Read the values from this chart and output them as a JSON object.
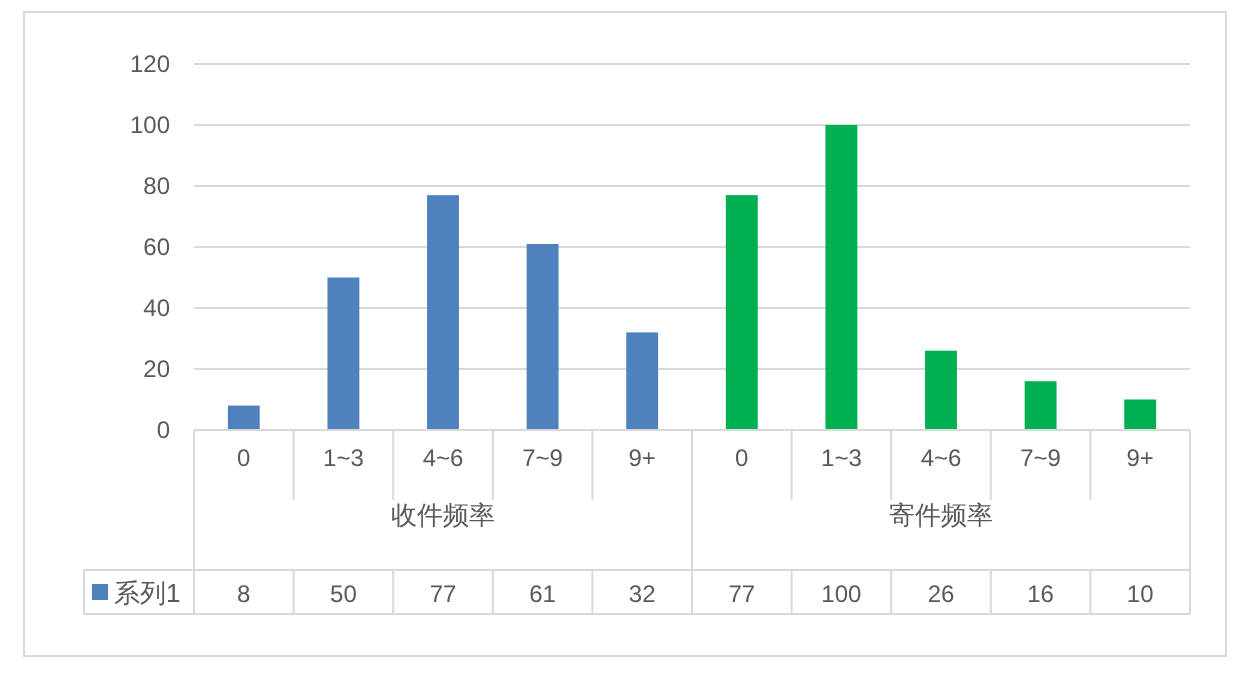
{
  "chart_data": {
    "type": "bar",
    "categories": [
      "0",
      "1~3",
      "4~6",
      "7~9",
      "9+",
      "0",
      "1~3",
      "4~6",
      "7~9",
      "9+"
    ],
    "annotations": [
      "收件频率",
      "寄件频率"
    ],
    "series": [
      {
        "name": "系列1",
        "color": "#4f81bd",
        "colors": [
          "#4f81bd",
          "#4f81bd",
          "#4f81bd",
          "#4f81bd",
          "#4f81bd",
          "#00b050",
          "#00b050",
          "#00b050",
          "#00b050",
          "#00b050"
        ],
        "values": [
          8,
          50,
          77,
          61,
          32,
          77,
          100,
          26,
          16,
          10
        ]
      }
    ],
    "ylim": [
      0,
      120
    ],
    "yticks": [
      0,
      20,
      40,
      60,
      80,
      100,
      120
    ],
    "grid": "y",
    "data_labels": true,
    "legend": "bottom left"
  }
}
